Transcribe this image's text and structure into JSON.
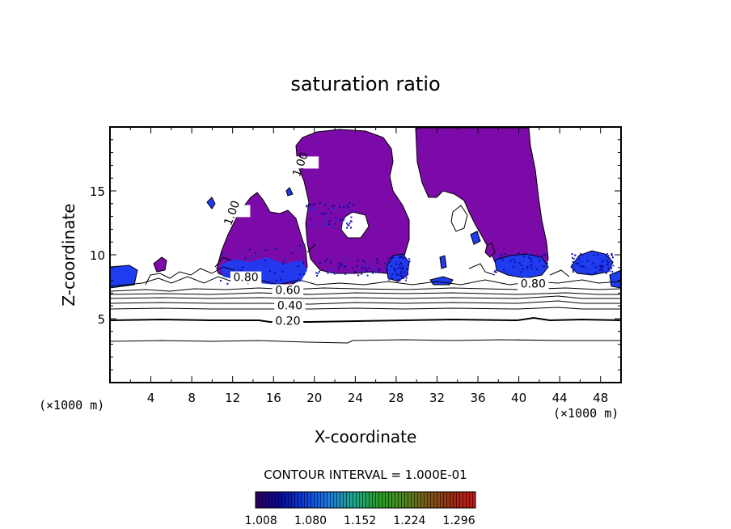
{
  "chart_data": {
    "type": "contour",
    "title": "saturation ratio",
    "xlabel": "X-coordinate",
    "ylabel": "Z-coordinate",
    "x_units": "(×1000 m)",
    "y_units": "(×1000 m)",
    "xlim": [
      0,
      50
    ],
    "ylim": [
      0,
      20
    ],
    "x_ticks": [
      4,
      8,
      12,
      16,
      20,
      24,
      28,
      32,
      36,
      40,
      44,
      48
    ],
    "y_ticks": [
      5,
      10,
      15
    ],
    "contour_labels": [
      {
        "text": "0.20",
        "x": 17.4,
        "y": 4.6
      },
      {
        "text": "0.40",
        "x": 17.6,
        "y": 5.8
      },
      {
        "text": "0.60",
        "x": 17.4,
        "y": 7.0
      },
      {
        "text": "0.80",
        "x": 13.3,
        "y": 8.0
      },
      {
        "text": "0.80",
        "x": 41.4,
        "y": 7.5
      },
      {
        "text": "1.00",
        "x": 12.2,
        "y": 13.2
      },
      {
        "text": "1.00",
        "x": 18.9,
        "y": 17.0
      }
    ],
    "contour_interval_label": "CONTOUR INTERVAL = 1.000E-01",
    "colorbar": {
      "ticks": [
        "1.008",
        "1.080",
        "1.152",
        "1.224",
        "1.296"
      ],
      "range": [
        1.0,
        1.32
      ],
      "colors": [
        "#2a0060",
        "#0a0a9a",
        "#0a3dd8",
        "#1e7be0",
        "#1aa890",
        "#24a028",
        "#4a8a20",
        "#7a5a18",
        "#9a2e12",
        "#c01818"
      ]
    },
    "supersaturated_fill_color": "#7c0aa8",
    "supersaturated_edge_color": "#1e3cf0"
  }
}
